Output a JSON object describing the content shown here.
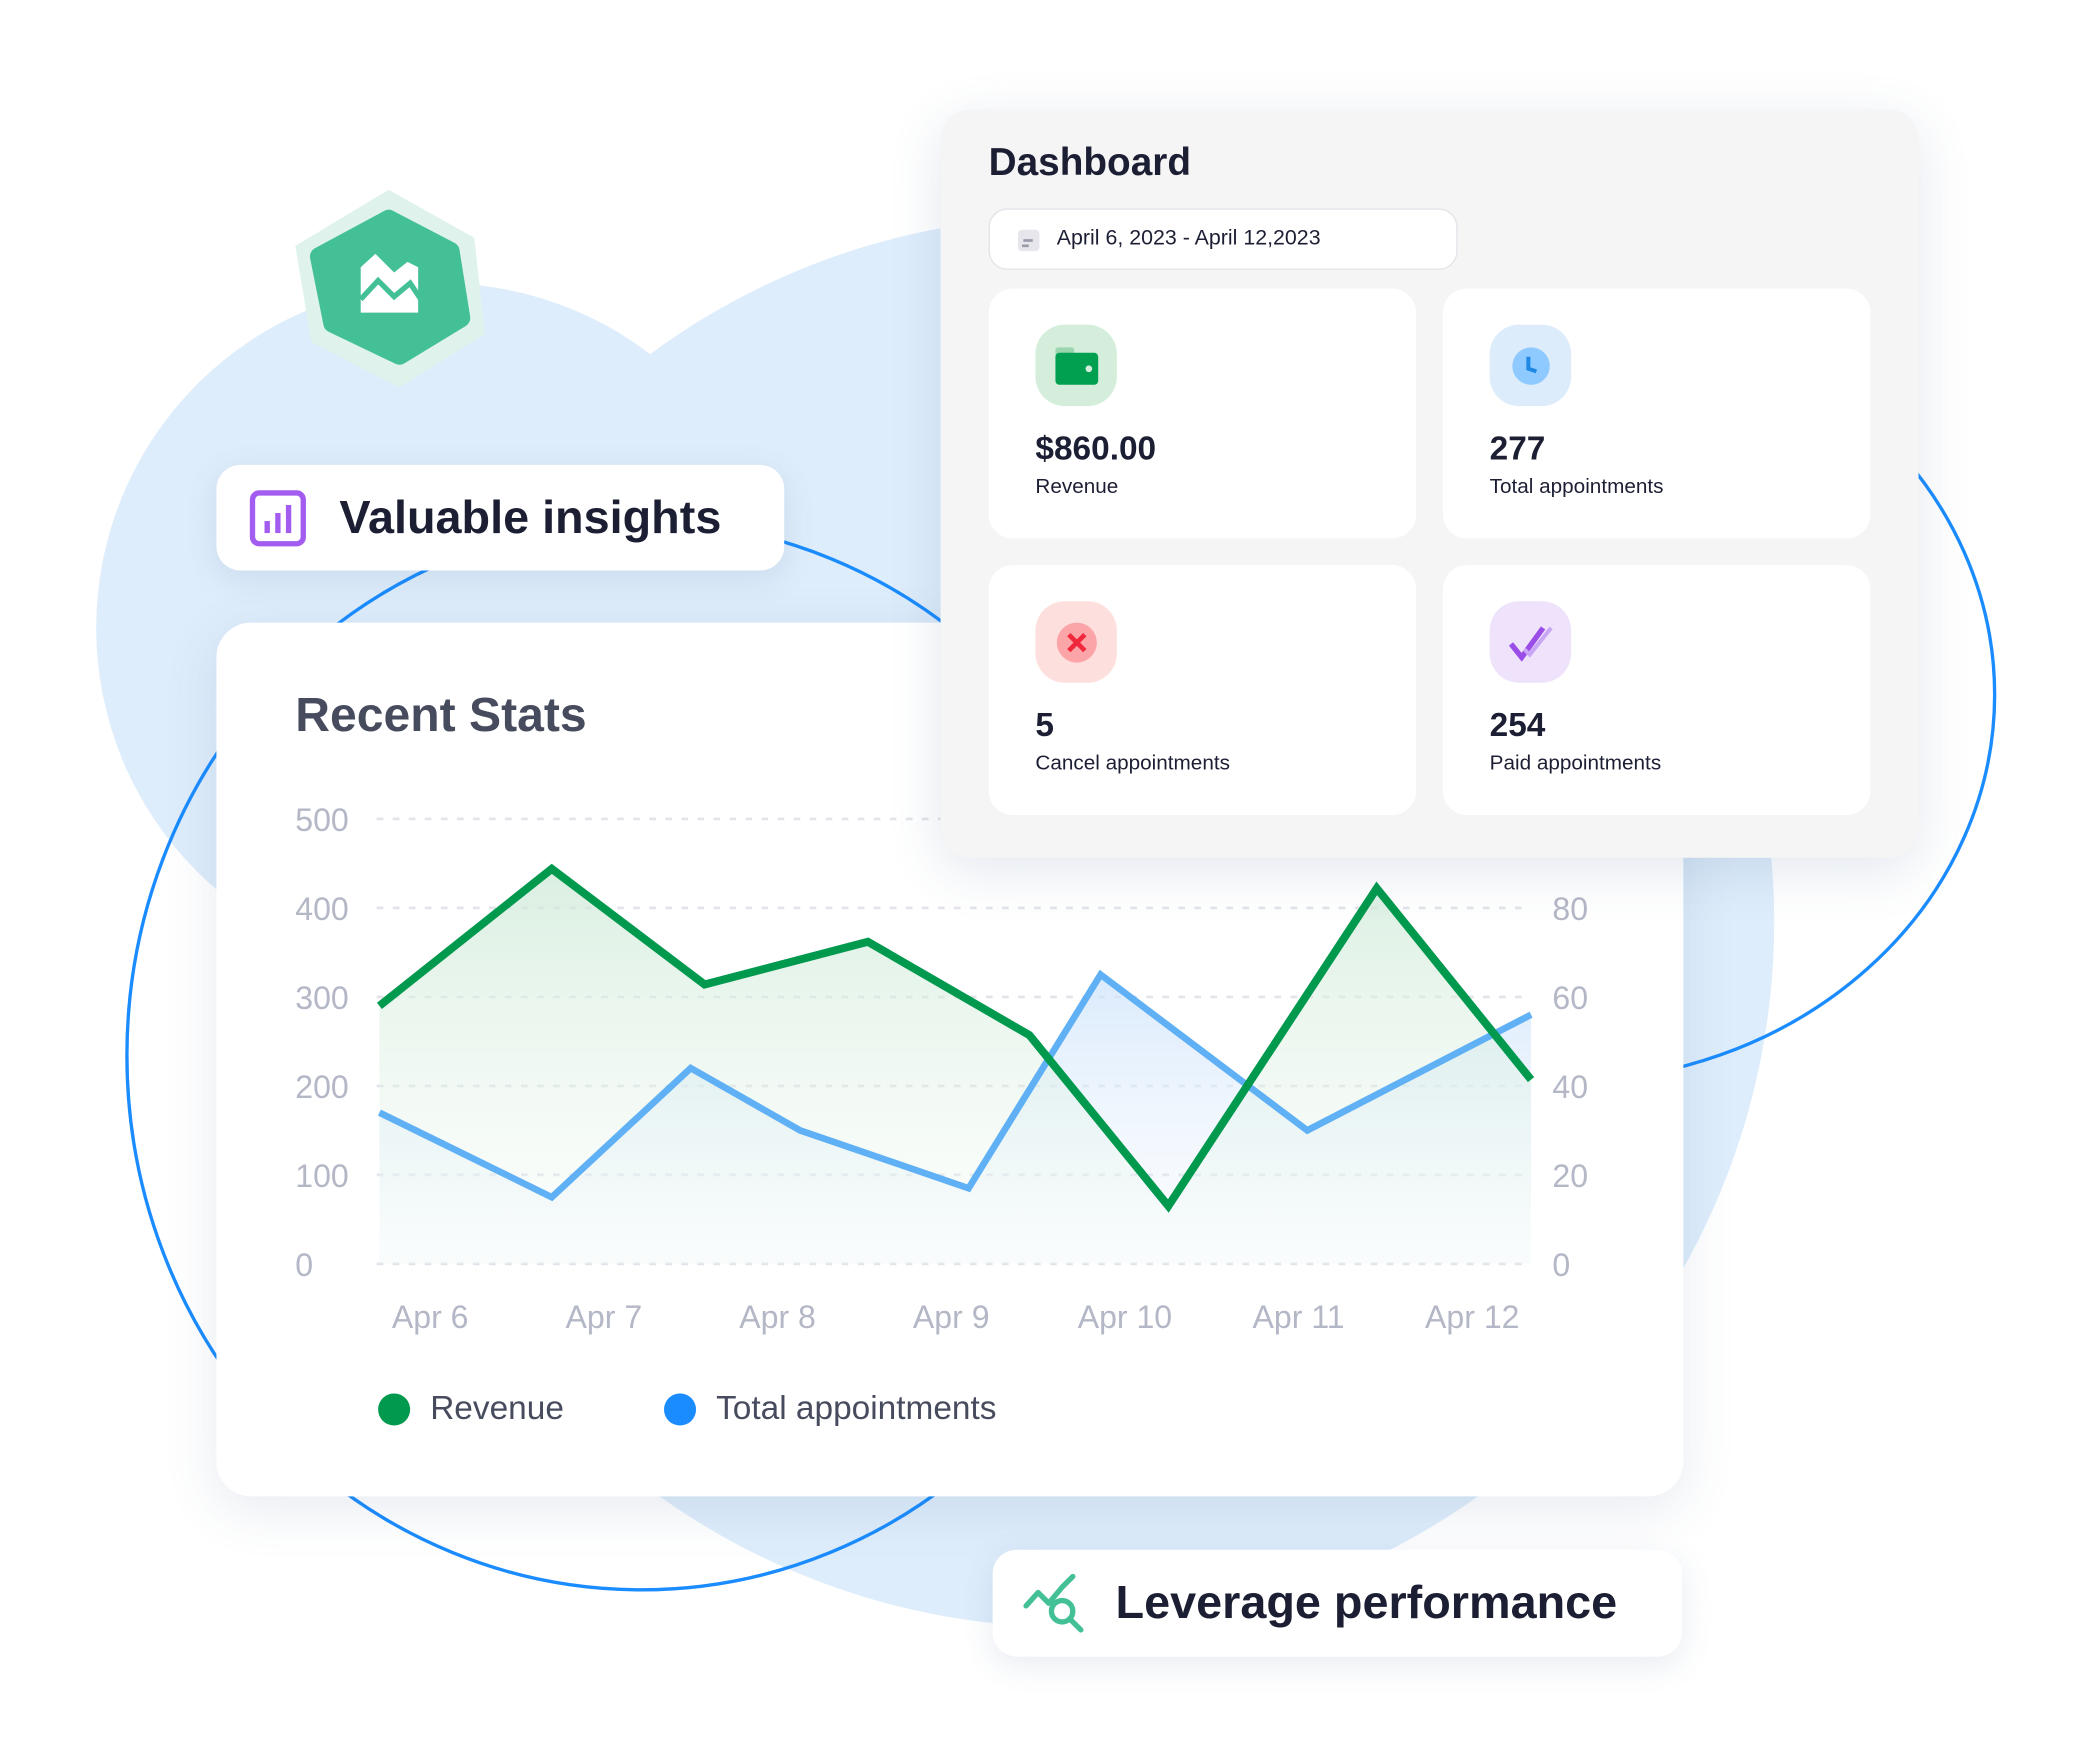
{
  "badges": {
    "insights_label": "Valuable insights",
    "performance_label": "Leverage performance"
  },
  "dashboard": {
    "title": "Dashboard",
    "date_range": "April 6, 2023 - April 12,2023",
    "stats": [
      {
        "value": "$860.00",
        "label": "Revenue",
        "icon": "wallet-icon",
        "color": "#00a050",
        "bg": "#d4eedb"
      },
      {
        "value": "277",
        "label": "Total appointments",
        "icon": "clock-icon",
        "color": "#1e88e5",
        "bg": "#dcecfb"
      },
      {
        "value": "5",
        "label": "Cancel appointments",
        "icon": "cancel-icon",
        "color": "#f0283c",
        "bg": "#fde0de"
      },
      {
        "value": "254",
        "label": "Paid appointments",
        "icon": "double-check-icon",
        "color": "#9b4de8",
        "bg": "#efe2fb"
      }
    ]
  },
  "chart_data": {
    "type": "area",
    "title": "Recent Stats",
    "categories": [
      "Apr 6",
      "Apr 7",
      "Apr 8",
      "Apr 9",
      "Apr 10",
      "Apr 11",
      "Apr 12"
    ],
    "left_axis": {
      "ticks": [
        "0",
        "100",
        "200",
        "300",
        "400",
        "500"
      ],
      "ylim": [
        0,
        500
      ]
    },
    "right_axis": {
      "ticks": [
        "0",
        "20",
        "40",
        "60",
        "80"
      ],
      "ylim": [
        0,
        100
      ]
    },
    "grid": true,
    "legend_position": "bottom-left",
    "series": [
      {
        "name": "Revenue",
        "axis": "left",
        "color": "#00994d",
        "points": [
          [
            5.7,
            290
          ],
          [
            6.7,
            444
          ],
          [
            7.58,
            314
          ],
          [
            8.52,
            362
          ],
          [
            9.45,
            257
          ],
          [
            10.25,
            65
          ],
          [
            11.45,
            422
          ],
          [
            12.34,
            207
          ]
        ]
      },
      {
        "name": "Total appointments",
        "axis": "right",
        "color": "#1a8cff",
        "points": [
          [
            5.7,
            34
          ],
          [
            6.7,
            15
          ],
          [
            7.5,
            44
          ],
          [
            8.13,
            30
          ],
          [
            9.1,
            17
          ],
          [
            9.86,
            65
          ],
          [
            11.05,
            30
          ],
          [
            12.34,
            56
          ]
        ]
      }
    ]
  }
}
